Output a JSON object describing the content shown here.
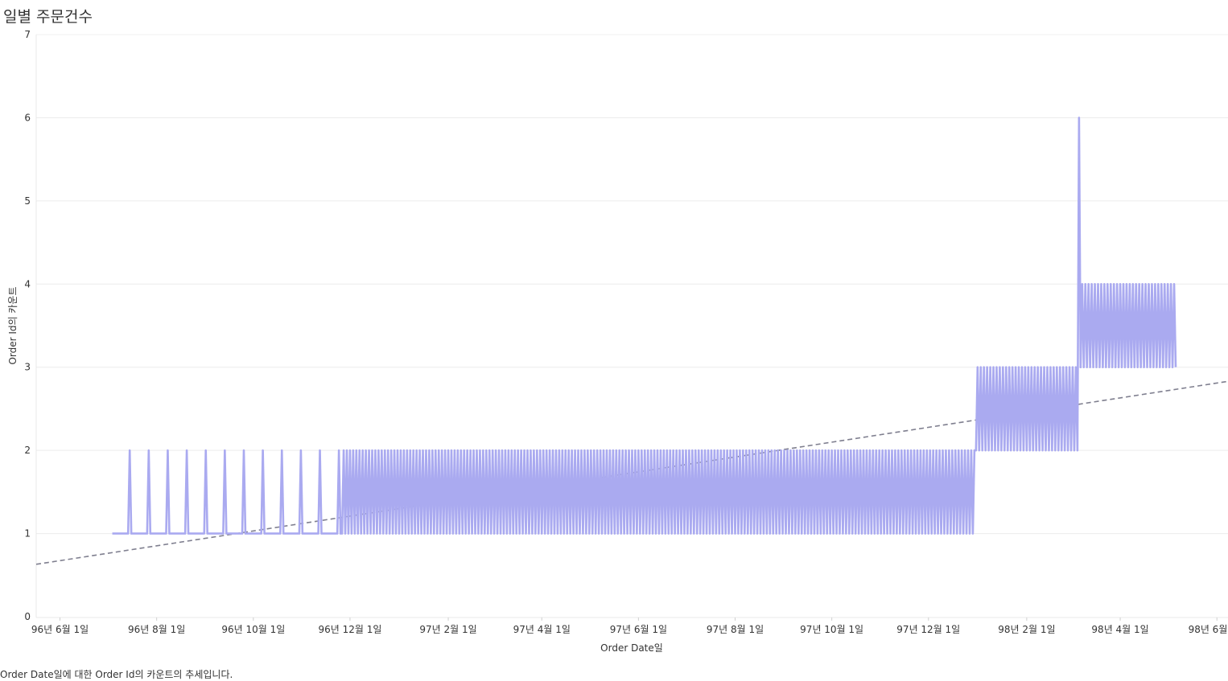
{
  "title": "일별 주문건수",
  "caption": "Order Date일에 대한 Order Id의 카운트의 추세입니다.",
  "chart_data": {
    "type": "line",
    "title": "일별 주문건수",
    "xlabel": "Order Date일",
    "ylabel": "Order Id의 카운트",
    "xlim": [
      "1996-05-17",
      "1998-06-08"
    ],
    "ylim": [
      0,
      7
    ],
    "y_ticks": [
      0,
      1,
      2,
      3,
      4,
      5,
      6,
      7
    ],
    "x_ticks": [
      {
        "date": "1996-06-01",
        "label": "96년 6월 1일"
      },
      {
        "date": "1996-08-01",
        "label": "96년 8월 1일"
      },
      {
        "date": "1996-10-01",
        "label": "96년 10월 1일"
      },
      {
        "date": "1996-12-01",
        "label": "96년 12월 1일"
      },
      {
        "date": "1997-02-01",
        "label": "97년 2월 1일"
      },
      {
        "date": "1997-04-01",
        "label": "97년 4월 1일"
      },
      {
        "date": "1997-06-01",
        "label": "97년 6월 1일"
      },
      {
        "date": "1997-08-01",
        "label": "97년 8월 1일"
      },
      {
        "date": "1997-10-01",
        "label": "97년 10월 1일"
      },
      {
        "date": "1997-12-01",
        "label": "97년 12월 1일"
      },
      {
        "date": "1998-02-01",
        "label": "98년 2월 1일"
      },
      {
        "date": "1998-04-01",
        "label": "98년 4월 1일"
      },
      {
        "date": "1998-06-01",
        "label": "98년 6월 1일"
      }
    ],
    "grid": true,
    "series_color": "#aaaaf0",
    "trend_color": "#7f7f8f",
    "series": [
      {
        "segments": [
          {
            "start": "1996-07-04",
            "end": "1996-11-25",
            "base": 1,
            "peak": 2,
            "peak_every": 12
          },
          {
            "start": "1996-11-26",
            "end": "1997-12-30",
            "base": 1,
            "peak": 2,
            "peak_every": 2
          },
          {
            "start": "1997-12-31",
            "end": "1998-03-05",
            "base": 2,
            "peak": 3,
            "peak_every": 2
          },
          {
            "start": "1998-03-06",
            "end": "1998-03-06",
            "base": 6,
            "peak": 6,
            "peak_every": 1
          },
          {
            "start": "1998-03-07",
            "end": "1998-05-06",
            "base": 3,
            "peak": 4,
            "peak_every": 2
          }
        ]
      }
    ],
    "trend_line": {
      "style": "dashed",
      "start": {
        "date": "1996-05-17",
        "value": 0.63
      },
      "end": {
        "date": "1998-06-08",
        "value": 2.83
      }
    }
  }
}
